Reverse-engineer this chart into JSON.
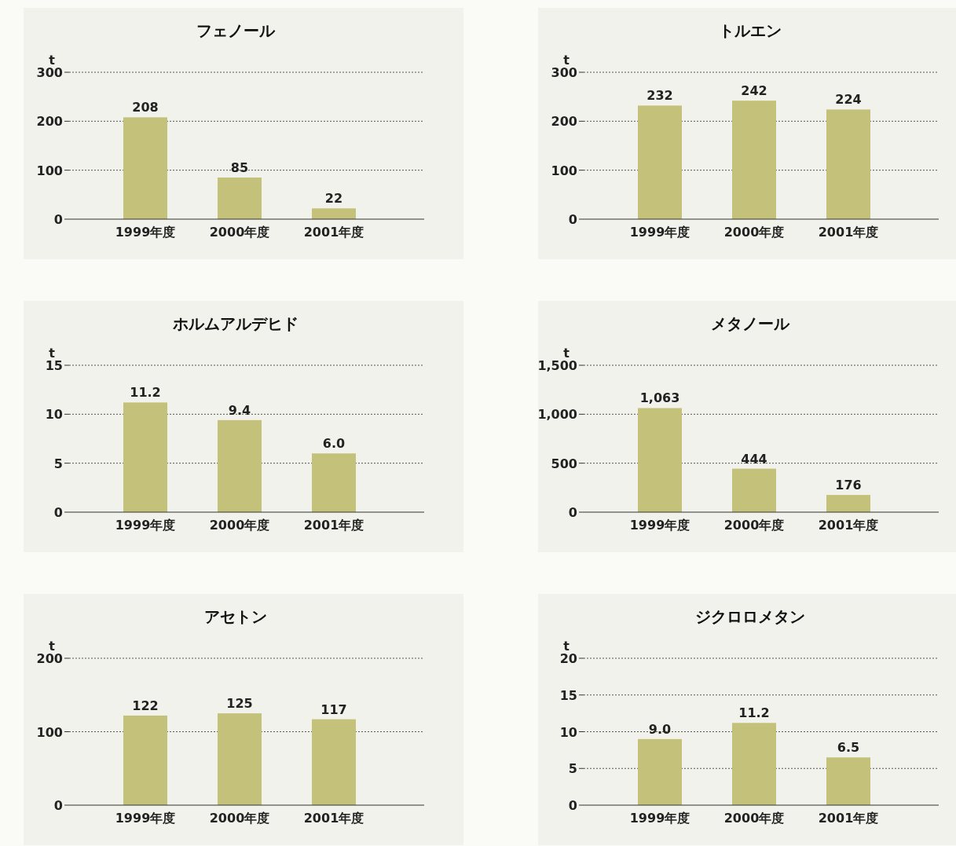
{
  "chart_data": [
    {
      "type": "bar",
      "title": "フェノール",
      "ylabel": "t",
      "categories": [
        "1999年度",
        "2000年度",
        "2001年度"
      ],
      "values": [
        208,
        85,
        22
      ],
      "value_labels": [
        "208",
        "85",
        "22"
      ],
      "color": "#c4c27a",
      "ylim": [
        0,
        300
      ],
      "yticks": [
        0,
        100,
        200,
        300
      ],
      "grid": "y"
    },
    {
      "type": "bar",
      "title": "トルエン",
      "ylabel": "t",
      "categories": [
        "1999年度",
        "2000年度",
        "2001年度"
      ],
      "values": [
        232,
        242,
        224
      ],
      "value_labels": [
        "232",
        "242",
        "224"
      ],
      "color": "#c4c27a",
      "ylim": [
        0,
        300
      ],
      "yticks": [
        0,
        100,
        200,
        300
      ],
      "grid": "y"
    },
    {
      "type": "bar",
      "title": "ホルムアルデヒド",
      "ylabel": "t",
      "categories": [
        "1999年度",
        "2000年度",
        "2001年度"
      ],
      "values": [
        11.2,
        9.4,
        6.0
      ],
      "value_labels": [
        "11.2",
        "9.4",
        "6.0"
      ],
      "color": "#c4c27a",
      "ylim": [
        0,
        15
      ],
      "yticks": [
        0,
        5,
        10,
        15
      ],
      "grid": "y"
    },
    {
      "type": "bar",
      "title": "メタノール",
      "ylabel": "t",
      "categories": [
        "1999年度",
        "2000年度",
        "2001年度"
      ],
      "values": [
        1063,
        444,
        176
      ],
      "value_labels": [
        "1,063",
        "444",
        "176"
      ],
      "color": "#c4c27a",
      "ylim": [
        0,
        1500
      ],
      "yticks": [
        0,
        500,
        {
          "value": 1000,
          "label": "1,000"
        },
        {
          "value": 1500,
          "label": "1,500"
        }
      ],
      "grid": "y"
    },
    {
      "type": "bar",
      "title": "アセトン",
      "ylabel": "t",
      "categories": [
        "1999年度",
        "2000年度",
        "2001年度"
      ],
      "values": [
        122,
        125,
        117
      ],
      "value_labels": [
        "122",
        "125",
        "117"
      ],
      "color": "#c4c27a",
      "ylim": [
        0,
        200
      ],
      "yticks": [
        0,
        100,
        200
      ],
      "grid": "y"
    },
    {
      "type": "bar",
      "title": "ジクロロメタン",
      "ylabel": "t",
      "categories": [
        "1999年度",
        "2000年度",
        "2001年度"
      ],
      "values": [
        9.0,
        11.2,
        6.5
      ],
      "value_labels": [
        "9.0",
        "11.2",
        "6.5"
      ],
      "color": "#c4c27a",
      "ylim": [
        0,
        20
      ],
      "yticks": [
        0,
        5,
        10,
        15,
        20
      ],
      "grid": "y"
    }
  ]
}
